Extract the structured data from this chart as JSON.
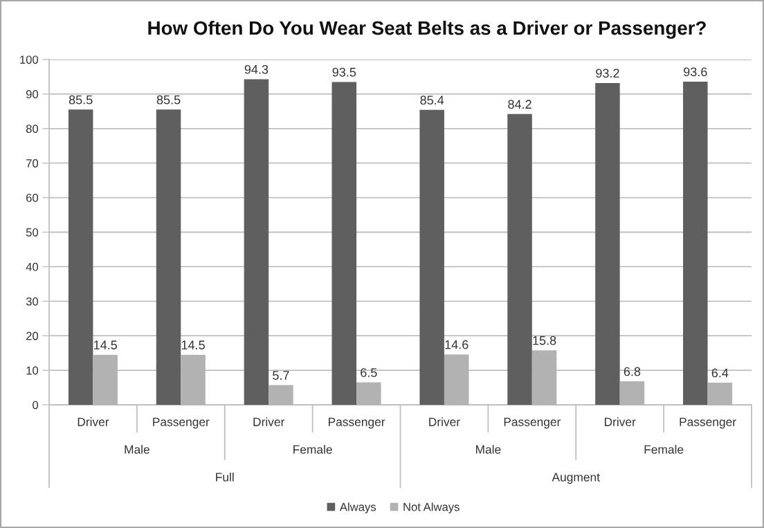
{
  "chart_data": {
    "type": "bar",
    "title": "How Often Do You Wear Seat Belts as a Driver or Passenger?",
    "categories": [
      "Driver",
      "Passenger",
      "Driver",
      "Passenger",
      "Driver",
      "Passenger",
      "Driver",
      "Passenger"
    ],
    "series": [
      {
        "name": "Always",
        "color": "#5f5f5f",
        "values": [
          85.5,
          85.5,
          94.3,
          93.5,
          85.4,
          84.2,
          93.2,
          93.6
        ]
      },
      {
        "name": "Not Always",
        "color": "#b2b2b2",
        "values": [
          14.5,
          14.5,
          5.7,
          6.5,
          14.6,
          15.8,
          6.8,
          6.4
        ]
      }
    ],
    "ylim": [
      0,
      100
    ],
    "yticks": [
      0,
      10,
      20,
      30,
      40,
      50,
      60,
      70,
      80,
      90,
      100
    ],
    "grid": "y",
    "legend": "bottom",
    "data_labels": true,
    "annotations": [
      "Male",
      "Female",
      "Male",
      "Female",
      "Full",
      "Augment"
    ]
  }
}
